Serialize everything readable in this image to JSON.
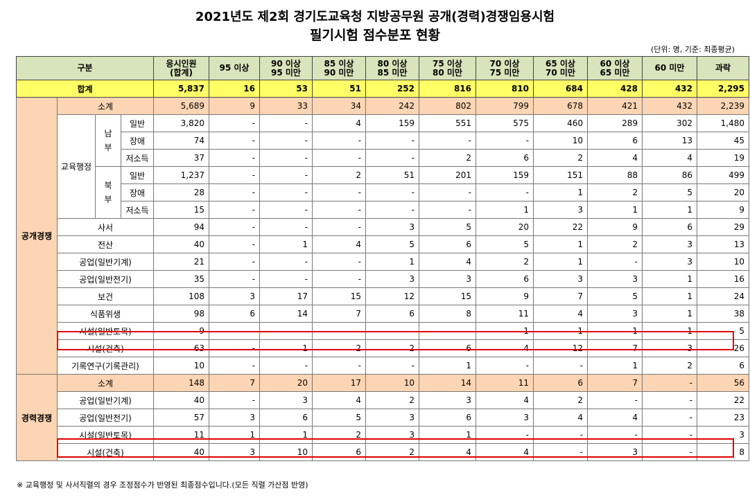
{
  "title_line1": "2021년도 제2회 경기도교육청 지방공무원 공개(경력)경쟁임용시험",
  "title_line2": "필기시험 점수분포 현황",
  "unit_note": "(단위: 명, 기준: 최종평균)",
  "footnote": "※ 교육행정 및 사서직렬의 경우 조정점수가 반영된 최종점수입니다.(모든 직렬 가산점 반영)",
  "headers": {
    "category": "구분",
    "applicants": [
      "응시인원",
      "(합계)"
    ],
    "bands": [
      [
        "95 이상"
      ],
      [
        "90 이상",
        "95 미만"
      ],
      [
        "85 이상",
        "90 미만"
      ],
      [
        "80 이상",
        "85 미만"
      ],
      [
        "75 이상",
        "80 미만"
      ],
      [
        "70 이상",
        "75 미만"
      ],
      [
        "65 이상",
        "70 미만"
      ],
      [
        "60 이상",
        "65 미만"
      ],
      [
        "60 미만"
      ],
      [
        "과락"
      ]
    ]
  },
  "total": {
    "label": "합계",
    "values": [
      "5,837",
      "16",
      "53",
      "51",
      "252",
      "816",
      "810",
      "684",
      "428",
      "432",
      "2,295"
    ]
  },
  "groups": {
    "open": "공개경쟁",
    "career": "경력경쟁",
    "edu_admin": "교육행정",
    "south": "남부",
    "north": "북부"
  },
  "open_subtotal": {
    "label": "소계",
    "values": [
      "5,689",
      "9",
      "33",
      "34",
      "242",
      "802",
      "799",
      "678",
      "421",
      "432",
      "2,239"
    ]
  },
  "edu_south": [
    {
      "label": "일반",
      "values": [
        "3,820",
        "-",
        "-",
        "4",
        "159",
        "551",
        "575",
        "460",
        "289",
        "302",
        "1,480"
      ]
    },
    {
      "label": "장애",
      "values": [
        "74",
        "-",
        "-",
        "-",
        "-",
        "-",
        "-",
        "10",
        "6",
        "13",
        "45"
      ]
    },
    {
      "label": "저소득",
      "values": [
        "37",
        "-",
        "-",
        "-",
        "-",
        "2",
        "6",
        "2",
        "4",
        "4",
        "19"
      ]
    }
  ],
  "edu_north": [
    {
      "label": "일반",
      "values": [
        "1,237",
        "-",
        "-",
        "2",
        "51",
        "201",
        "159",
        "151",
        "88",
        "86",
        "499"
      ]
    },
    {
      "label": "장애",
      "values": [
        "28",
        "-",
        "-",
        "-",
        "-",
        "-",
        "-",
        "1",
        "2",
        "5",
        "20"
      ]
    },
    {
      "label": "저소득",
      "values": [
        "15",
        "-",
        "-",
        "-",
        "-",
        "-",
        "1",
        "3",
        "1",
        "1",
        "9"
      ]
    }
  ],
  "open_rows": [
    {
      "label": "사서",
      "values": [
        "94",
        "-",
        "-",
        "-",
        "3",
        "5",
        "20",
        "22",
        "9",
        "6",
        "29"
      ]
    },
    {
      "label": "전산",
      "values": [
        "40",
        "-",
        "1",
        "4",
        "5",
        "6",
        "5",
        "1",
        "2",
        "3",
        "13"
      ]
    },
    {
      "label": "공업(일반기계)",
      "values": [
        "21",
        "-",
        "-",
        "-",
        "1",
        "4",
        "2",
        "1",
        "-",
        "3",
        "10"
      ]
    },
    {
      "label": "공업(일반전기)",
      "values": [
        "35",
        "-",
        "-",
        "-",
        "3",
        "3",
        "6",
        "3",
        "3",
        "1",
        "16"
      ]
    },
    {
      "label": "보건",
      "values": [
        "108",
        "3",
        "17",
        "15",
        "12",
        "15",
        "9",
        "7",
        "5",
        "1",
        "24"
      ]
    },
    {
      "label": "식품위생",
      "values": [
        "98",
        "6",
        "14",
        "7",
        "6",
        "8",
        "11",
        "4",
        "3",
        "1",
        "38"
      ]
    },
    {
      "label": "시설(일반토목)",
      "values": [
        "9",
        "-",
        "-",
        "-",
        "-",
        "-",
        "1",
        "1",
        "1",
        "1",
        "5"
      ]
    },
    {
      "label": "시설(건축)",
      "values": [
        "63",
        "-",
        "1",
        "2",
        "2",
        "6",
        "4",
        "12",
        "7",
        "3",
        "26"
      ]
    },
    {
      "label": "기록연구(기록관리)",
      "values": [
        "10",
        "-",
        "-",
        "-",
        "-",
        "1",
        "-",
        "-",
        "1",
        "2",
        "6"
      ]
    }
  ],
  "career_subtotal": {
    "label": "소계",
    "values": [
      "148",
      "7",
      "20",
      "17",
      "10",
      "14",
      "11",
      "6",
      "7",
      "-",
      "56"
    ]
  },
  "career_rows": [
    {
      "label": "공업(일반기계)",
      "values": [
        "40",
        "-",
        "3",
        "4",
        "2",
        "3",
        "4",
        "2",
        "-",
        "-",
        "22"
      ]
    },
    {
      "label": "공업(일반전기)",
      "values": [
        "57",
        "3",
        "6",
        "5",
        "3",
        "6",
        "3",
        "4",
        "4",
        "-",
        "23"
      ]
    },
    {
      "label": "시설(일반토목)",
      "values": [
        "11",
        "1",
        "1",
        "2",
        "3",
        "1",
        "-",
        "-",
        "-",
        "-",
        "3"
      ]
    },
    {
      "label": "시설(건축)",
      "values": [
        "40",
        "3",
        "10",
        "6",
        "2",
        "4",
        "4",
        "-",
        "3",
        "-",
        "8"
      ]
    }
  ]
}
